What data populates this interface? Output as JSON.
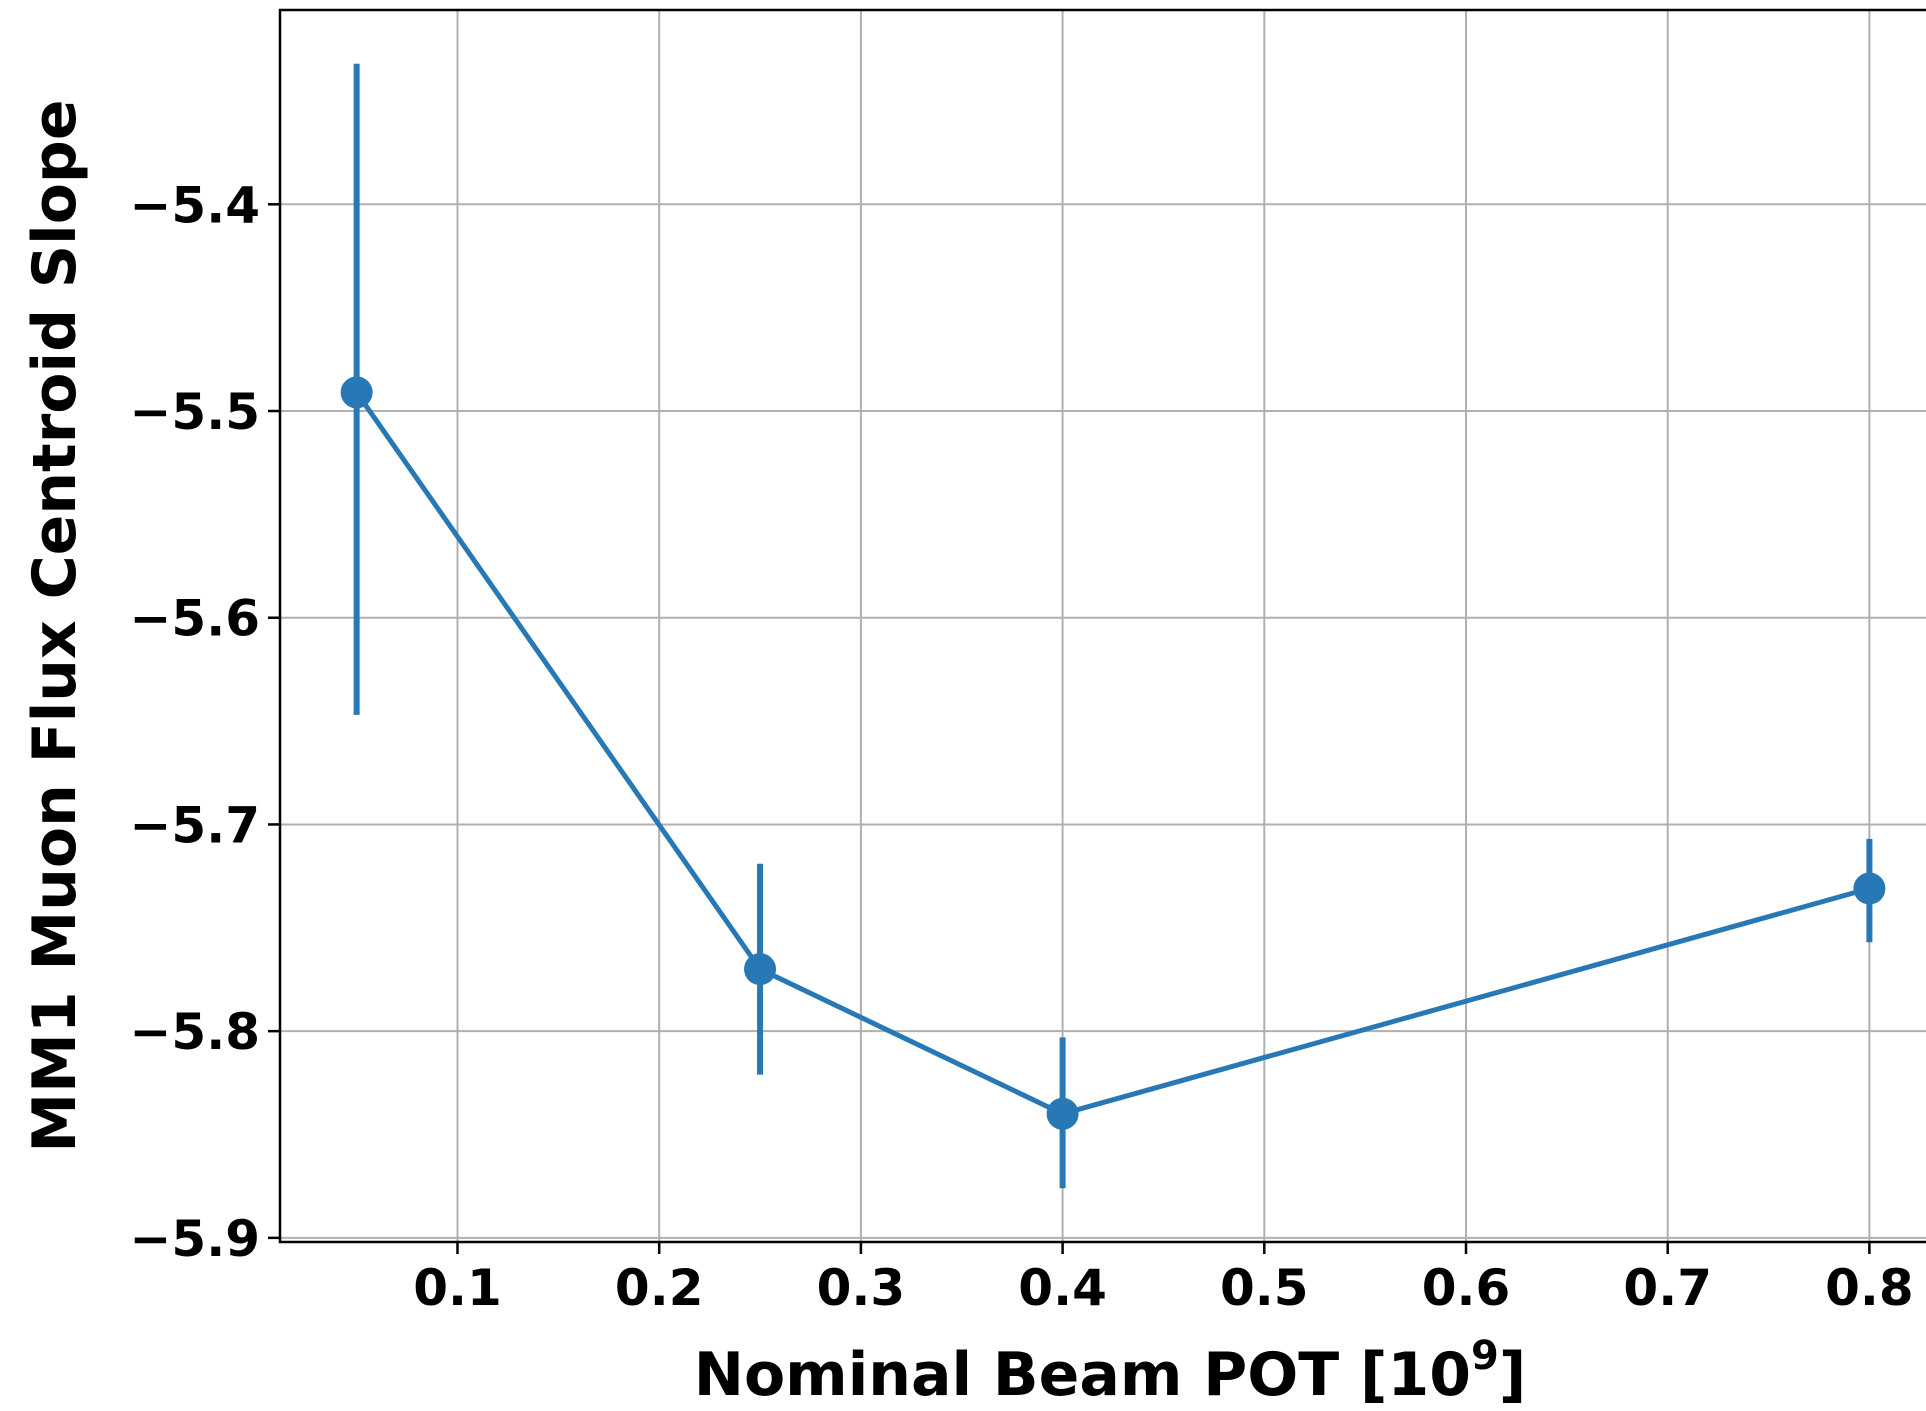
{
  "chart_data": {
    "type": "line",
    "title": "",
    "xlabel": "Nominal Beam POT [10",
    "xlabel_sup": "9",
    "xlabel_end": "]",
    "ylabel": "MM1 Muon Flux Centroid Slope",
    "xlim": [
      0.012,
      0.835
    ],
    "ylim": [
      -5.902,
      -5.306
    ],
    "x_ticks": [
      0.1,
      0.2,
      0.3,
      0.4,
      0.5,
      0.6,
      0.7,
      0.8
    ],
    "x_tick_labels": [
      "0.1",
      "0.2",
      "0.3",
      "0.4",
      "0.5",
      "0.6",
      "0.7",
      "0.8"
    ],
    "y_ticks": [
      -5.4,
      -5.5,
      -5.6,
      -5.7,
      -5.8,
      -5.9
    ],
    "y_tick_labels": [
      "−5.4",
      "−5.5",
      "−5.6",
      "−5.7",
      "−5.8",
      "−5.9"
    ],
    "grid": true,
    "series": [
      {
        "color": "#2878b5",
        "x": [
          0.05,
          0.25,
          0.4,
          0.8
        ],
        "y": [
          -5.491,
          -5.77,
          -5.84,
          -5.731
        ],
        "yerr_low": [
          -5.647,
          -5.821,
          -5.876,
          -5.757
        ],
        "yerr_high": [
          -5.332,
          -5.719,
          -5.803,
          -5.707
        ]
      }
    ]
  }
}
